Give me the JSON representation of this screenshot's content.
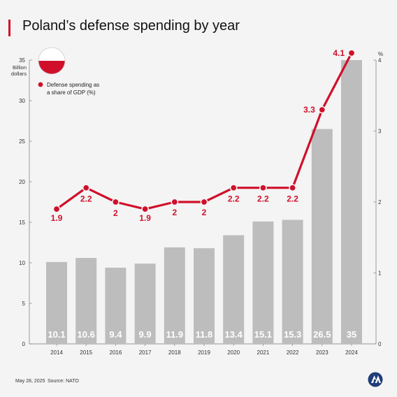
{
  "title": "Poland’s defense spending by year",
  "chart_data": {
    "type": "bar",
    "categories": [
      "2014",
      "2015",
      "2016",
      "2017",
      "2018",
      "2019",
      "2020",
      "2021",
      "2022",
      "2023",
      "2024"
    ],
    "series": [
      {
        "values": [
          10.1,
          10.6,
          9.4,
          9.9,
          11.9,
          11.8,
          13.4,
          15.1,
          15.3,
          26.5,
          35
        ],
        "axis": "left",
        "mark": "bar"
      },
      {
        "name": "Defense spending as a share of GDP (%)",
        "values": [
          1.9,
          2.2,
          2,
          1.9,
          2,
          2,
          2.2,
          2.2,
          2.2,
          3.3,
          4.1
        ],
        "axis": "right",
        "mark": "line"
      }
    ],
    "left_axis": {
      "label": [
        "Billion",
        "dollars"
      ],
      "ticks": [
        0,
        5,
        10,
        15,
        20,
        25,
        30,
        35
      ],
      "range": [
        0,
        35
      ]
    },
    "right_axis": {
      "label": "%",
      "ticks": [
        0,
        1,
        2,
        3,
        4
      ],
      "range": [
        0,
        4
      ]
    },
    "bar_labels": [
      "10.1",
      "10.6",
      "9.4",
      "9.9",
      "11.9",
      "11.8",
      "13.4",
      "15.1",
      "15.3",
      "26.5",
      "35"
    ],
    "line_labels": [
      "1.9",
      "2.2",
      "2",
      "1.9",
      "2",
      "2",
      "2.2",
      "2.2",
      "2.2",
      "3.3",
      "4.1"
    ],
    "legend": {
      "line1": "Defense spending as",
      "line2": "a share of GDP (%)",
      "placement": "top-left"
    },
    "colors": {
      "bar": "#bdbdbd",
      "line": "#d0102a",
      "bar_label": "#ffffff",
      "text": "#333333"
    }
  },
  "flag": {
    "colors": [
      "#ffffff",
      "#d0102a"
    ]
  },
  "footer": {
    "date": "May 28, 2025",
    "source": "Source: NATO"
  }
}
